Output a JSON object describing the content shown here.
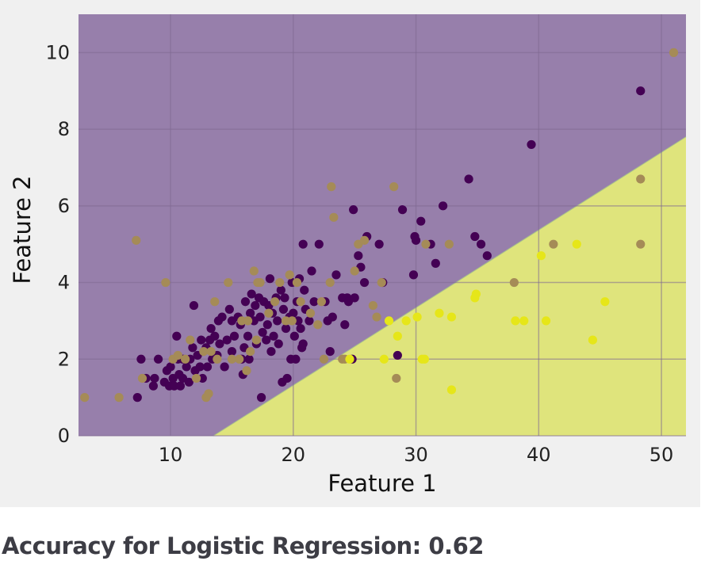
{
  "chart_data": {
    "type": "scatter",
    "title": "",
    "xlabel": "Feature 1",
    "ylabel": "Feature 2",
    "xlim": [
      2.5,
      52
    ],
    "ylim": [
      0,
      11
    ],
    "xticks": [
      10,
      20,
      30,
      40,
      50
    ],
    "yticks": [
      0,
      2,
      4,
      6,
      8,
      10
    ],
    "grid": true,
    "legend": "none",
    "decision_boundary": {
      "line": [
        [
          13.5,
          0
        ],
        [
          52,
          7.8
        ]
      ],
      "region_colors": {
        "class_0": "#977fab",
        "class_1": "#dfe47c"
      }
    },
    "series": [
      {
        "color": "#440154",
        "points": [
          [
            7.3,
            1
          ],
          [
            7.6,
            2
          ],
          [
            8,
            1.5
          ],
          [
            8.6,
            1.3
          ],
          [
            8.7,
            1.5
          ],
          [
            9,
            2
          ],
          [
            9.5,
            1.4
          ],
          [
            9.7,
            1.7
          ],
          [
            9.9,
            1.3
          ],
          [
            10,
            1.8
          ],
          [
            10.2,
            1.5
          ],
          [
            10.3,
            1.3
          ],
          [
            10.5,
            2.6
          ],
          [
            10.6,
            2
          ],
          [
            10.7,
            1.6
          ],
          [
            10.8,
            1.3
          ],
          [
            11,
            1.5
          ],
          [
            11,
            2
          ],
          [
            11.3,
            1.8
          ],
          [
            11.5,
            1.4
          ],
          [
            11.6,
            2
          ],
          [
            11.8,
            2.3
          ],
          [
            11.9,
            3.4
          ],
          [
            12,
            1.7
          ],
          [
            12.2,
            2.1
          ],
          [
            12.4,
            1.8
          ],
          [
            12.5,
            2.5
          ],
          [
            12.6,
            1.5
          ],
          [
            12.9,
            2.3
          ],
          [
            13,
            1.8
          ],
          [
            13.2,
            2.5
          ],
          [
            13.3,
            2.8
          ],
          [
            13.4,
            2
          ],
          [
            13.6,
            2.6
          ],
          [
            13.8,
            2.1
          ],
          [
            13.9,
            3
          ],
          [
            14,
            2.4
          ],
          [
            14.2,
            3.1
          ],
          [
            14.4,
            1.8
          ],
          [
            14.6,
            2.5
          ],
          [
            14.8,
            3.3
          ],
          [
            15,
            2.2
          ],
          [
            15,
            3
          ],
          [
            15.2,
            2.6
          ],
          [
            15.5,
            3.1
          ],
          [
            15.7,
            2.9
          ],
          [
            15.8,
            2
          ],
          [
            15.9,
            1.6
          ],
          [
            16,
            2.3
          ],
          [
            16.1,
            3.5
          ],
          [
            16.3,
            2.6
          ],
          [
            16.4,
            2
          ],
          [
            16.5,
            3.2
          ],
          [
            16.6,
            3.7
          ],
          [
            16.8,
            3
          ],
          [
            16.9,
            3.4
          ],
          [
            17,
            2.4
          ],
          [
            17.2,
            3.6
          ],
          [
            17.3,
            3.1
          ],
          [
            17.4,
            1
          ],
          [
            17.5,
            2.7
          ],
          [
            17.6,
            3.5
          ],
          [
            17.8,
            2.5
          ],
          [
            17.9,
            2.9
          ],
          [
            18,
            3.4
          ],
          [
            18.1,
            4.1
          ],
          [
            18.2,
            2.2
          ],
          [
            18.3,
            3.2
          ],
          [
            18.4,
            2.6
          ],
          [
            18.6,
            3.6
          ],
          [
            18.7,
            3
          ],
          [
            18.8,
            2.4
          ],
          [
            19,
            3.8
          ],
          [
            19.1,
            1.4
          ],
          [
            19.2,
            3.3
          ],
          [
            19.3,
            3.6
          ],
          [
            19.4,
            2.8
          ],
          [
            19.5,
            1.5
          ],
          [
            19.7,
            3.1
          ],
          [
            19.8,
            2
          ],
          [
            19.9,
            4
          ],
          [
            20,
            3.2
          ],
          [
            20.1,
            2.6
          ],
          [
            20.2,
            2
          ],
          [
            20.3,
            3.5
          ],
          [
            20.4,
            3
          ],
          [
            20.5,
            4.1
          ],
          [
            20.6,
            2.8
          ],
          [
            20.7,
            2.3
          ],
          [
            20.8,
            2.4
          ],
          [
            20.8,
            5
          ],
          [
            20.9,
            3.8
          ],
          [
            21,
            3.3
          ],
          [
            21.3,
            3
          ],
          [
            21.5,
            4.3
          ],
          [
            21.7,
            3.5
          ],
          [
            22.1,
            5
          ],
          [
            22.6,
            3.5
          ],
          [
            22.8,
            3
          ],
          [
            23,
            2.2
          ],
          [
            23.2,
            3.1
          ],
          [
            23.5,
            4.2
          ],
          [
            24,
            3.6
          ],
          [
            24.2,
            2.9
          ],
          [
            24.4,
            3.6
          ],
          [
            24.5,
            3.5
          ],
          [
            24.8,
            2
          ],
          [
            24.9,
            5.9
          ],
          [
            25,
            3.6
          ],
          [
            25.3,
            4.7
          ],
          [
            25.5,
            4.4
          ],
          [
            25.8,
            4
          ],
          [
            26,
            5.2
          ],
          [
            27,
            5
          ],
          [
            27.3,
            4
          ],
          [
            28.5,
            2.1
          ],
          [
            28.9,
            5.9
          ],
          [
            29.8,
            4.2
          ],
          [
            29.9,
            5.2
          ],
          [
            30,
            5.1
          ],
          [
            30.4,
            5.6
          ],
          [
            31.2,
            5
          ],
          [
            31.6,
            4.5
          ],
          [
            32.2,
            6
          ],
          [
            34.3,
            6.7
          ],
          [
            34.8,
            5.2
          ],
          [
            35.3,
            5
          ],
          [
            35.8,
            4.7
          ],
          [
            39.4,
            7.6
          ],
          [
            48.3,
            9
          ]
        ]
      },
      {
        "color": "#a58b57",
        "points": [
          [
            3,
            1
          ],
          [
            5.8,
            1
          ],
          [
            7.2,
            5.1
          ],
          [
            7.7,
            1.5
          ],
          [
            9.6,
            4
          ],
          [
            10.2,
            2
          ],
          [
            10.6,
            2.1
          ],
          [
            11.2,
            2
          ],
          [
            11.6,
            2.5
          ],
          [
            12.1,
            1.5
          ],
          [
            12.7,
            2.2
          ],
          [
            12.9,
            1
          ],
          [
            13.1,
            1.1
          ],
          [
            13.3,
            2.2
          ],
          [
            13.6,
            3.5
          ],
          [
            13.8,
            2
          ],
          [
            14.7,
            4
          ],
          [
            15,
            2
          ],
          [
            15.6,
            2
          ],
          [
            15.8,
            3
          ],
          [
            16.2,
            1.7
          ],
          [
            16.3,
            3
          ],
          [
            16.5,
            2.2
          ],
          [
            16.8,
            4.3
          ],
          [
            17,
            2.5
          ],
          [
            17.1,
            4
          ],
          [
            17.3,
            4
          ],
          [
            18,
            3.2
          ],
          [
            18.5,
            3.5
          ],
          [
            18.9,
            4
          ],
          [
            19.4,
            3
          ],
          [
            19.7,
            4.2
          ],
          [
            19.9,
            3
          ],
          [
            20.3,
            4
          ],
          [
            20.6,
            3.5
          ],
          [
            21.4,
            3.2
          ],
          [
            22,
            2.9
          ],
          [
            22.3,
            3.5
          ],
          [
            22.5,
            2
          ],
          [
            23,
            4
          ],
          [
            23.1,
            6.5
          ],
          [
            23.3,
            5.7
          ],
          [
            24,
            2
          ],
          [
            24.2,
            2
          ],
          [
            25,
            4.3
          ],
          [
            25.3,
            5
          ],
          [
            25.8,
            5.1
          ],
          [
            26.5,
            3.4
          ],
          [
            26.8,
            3.1
          ],
          [
            27.2,
            4
          ],
          [
            28.2,
            6.5
          ],
          [
            28.4,
            1.5
          ],
          [
            30.8,
            5
          ],
          [
            32.7,
            5
          ],
          [
            38,
            4
          ],
          [
            41.2,
            5
          ],
          [
            48.3,
            6.7
          ],
          [
            48.3,
            5
          ],
          [
            51,
            10
          ]
        ]
      },
      {
        "color": "#e6e619",
        "points": [
          [
            24.6,
            2
          ],
          [
            27.4,
            2
          ],
          [
            27.8,
            3
          ],
          [
            28.5,
            2.6
          ],
          [
            29.2,
            3
          ],
          [
            30.1,
            3.1
          ],
          [
            30.5,
            2
          ],
          [
            30.7,
            2
          ],
          [
            31.9,
            3.2
          ],
          [
            32.9,
            3.1
          ],
          [
            32.9,
            1.2
          ],
          [
            34.8,
            3.6
          ],
          [
            34.9,
            3.7
          ],
          [
            38.1,
            3
          ],
          [
            38.8,
            3
          ],
          [
            40.2,
            4.7
          ],
          [
            40.6,
            3
          ],
          [
            43.1,
            5
          ],
          [
            44.4,
            2.5
          ],
          [
            45.4,
            3.5
          ]
        ]
      }
    ]
  },
  "accuracy_text": "Accuracy for Logistic Regression: 0.62"
}
